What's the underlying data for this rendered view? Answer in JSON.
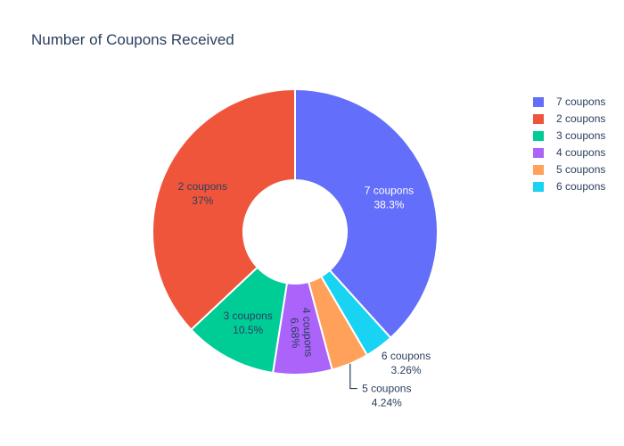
{
  "chart_data": {
    "type": "pie",
    "hole": true,
    "title": "Number of Coupons Received",
    "legend_position": "top-right",
    "slices": [
      {
        "name": "7 coupons",
        "percent": 38.3,
        "percent_label": "38.3%",
        "color": "#636efa",
        "label_color": "#ffffff"
      },
      {
        "name": "6 coupons",
        "percent": 3.26,
        "percent_label": "3.26%",
        "color": "#19d3f3",
        "label_color": "#2a3f5f"
      },
      {
        "name": "5 coupons",
        "percent": 4.24,
        "percent_label": "4.24%",
        "color": "#ffa15a",
        "label_color": "#2a3f5f"
      },
      {
        "name": "4 coupons",
        "percent": 6.68,
        "percent_label": "6.68%",
        "color": "#ab63fa",
        "label_color": "#2a3f5f"
      },
      {
        "name": "3 coupons",
        "percent": 10.5,
        "percent_label": "10.5%",
        "color": "#00cc96",
        "label_color": "#2a3f5f"
      },
      {
        "name": "2 coupons",
        "percent": 37,
        "percent_label": "37%",
        "color": "#ef553b",
        "label_color": "#2a3f5f"
      }
    ],
    "legend": [
      "7 coupons",
      "2 coupons",
      "3 coupons",
      "4 coupons",
      "5 coupons",
      "6 coupons"
    ]
  }
}
